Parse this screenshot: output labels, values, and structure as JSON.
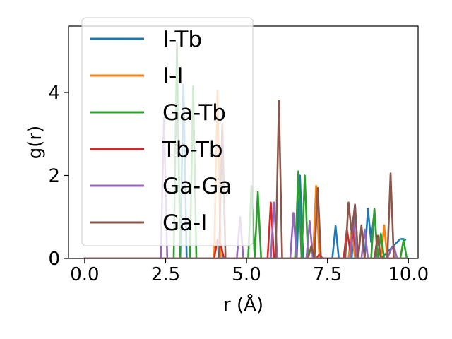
{
  "chart_data": {
    "type": "line",
    "title": "",
    "xlabel": "r (Å)",
    "ylabel": "g(r)",
    "xlim": [
      -0.5,
      10.3
    ],
    "ylim": [
      0,
      5.6
    ],
    "xticks": [
      0.0,
      2.5,
      5.0,
      7.5,
      10.0
    ],
    "xtick_labels": [
      "0.0",
      "2.5",
      "5.0",
      "7.5",
      "10.0"
    ],
    "yticks": [
      0,
      2,
      4
    ],
    "ytick_labels": [
      "0",
      "2",
      "4"
    ],
    "grid": false,
    "legend_position": "upper-left",
    "series": [
      {
        "name": "I-Tb",
        "color": "#1f77b4",
        "x": [
          0,
          2.95,
          3.05,
          3.15,
          3.25,
          6.55,
          6.65,
          6.75,
          6.85,
          7.65,
          7.75,
          7.85,
          8.25,
          8.35,
          8.45,
          8.65,
          8.75,
          8.85,
          8.95,
          9.05,
          9.15,
          9.75,
          9.85,
          9.9
        ],
        "y": [
          0,
          0,
          4.2,
          0,
          0,
          0,
          2.0,
          0,
          0,
          0,
          0.78,
          0,
          0,
          1.3,
          0,
          0,
          1.2,
          0.4,
          1.15,
          0,
          0,
          0.47,
          0.47,
          0.45
        ]
      },
      {
        "name": "I-I",
        "color": "#ff7f0e",
        "x": [
          0,
          4.0,
          4.1,
          4.2,
          7.05,
          7.15,
          7.25,
          8.15,
          8.25,
          8.35,
          9.15,
          9.25,
          9.35,
          9.9
        ],
        "y": [
          0,
          0,
          4.05,
          0,
          0,
          1.75,
          0,
          0,
          0.7,
          0,
          0,
          0.8,
          0,
          0
        ]
      },
      {
        "name": "Ga-Tb",
        "color": "#2ca02c",
        "x": [
          0,
          2.75,
          2.85,
          2.95,
          3.25,
          3.35,
          3.45,
          5.05,
          5.15,
          5.25,
          5.35,
          5.45,
          6.5,
          6.6,
          6.7,
          6.8,
          6.9,
          8.85,
          8.95,
          9.05,
          9.15,
          9.25,
          9.75,
          9.85,
          9.95
        ],
        "y": [
          0,
          0,
          5.2,
          0,
          0,
          4.15,
          0,
          0,
          1.75,
          0,
          1.6,
          0,
          0,
          2.1,
          0,
          2.0,
          0,
          0,
          1.2,
          0,
          0.6,
          0,
          0,
          0.45,
          0
        ]
      },
      {
        "name": "Tb-Tb",
        "color": "#d62728",
        "x": [
          0,
          4.0,
          4.1,
          4.2,
          4.3,
          5.65,
          5.75,
          5.85,
          7.15,
          7.25,
          7.35,
          8.0,
          8.1,
          8.2,
          8.3,
          8.4,
          8.95,
          9.05,
          9.15,
          9.9
        ],
        "y": [
          0,
          0,
          0.45,
          0.35,
          0,
          0,
          1.35,
          0,
          0,
          0.1,
          0,
          0,
          0.7,
          0.2,
          0.65,
          0,
          0,
          0.55,
          0,
          0
        ]
      },
      {
        "name": "Ga-Ga",
        "color": "#9467bd",
        "x": [
          0,
          2.35,
          2.45,
          2.55,
          4.7,
          4.8,
          4.9,
          5.75,
          5.85,
          5.95,
          6.35,
          6.45,
          6.55,
          6.85,
          6.95,
          7.05,
          8.2,
          8.3,
          8.4,
          8.55,
          8.65,
          8.75,
          9.35,
          9.45,
          9.55,
          9.65,
          9.9
        ],
        "y": [
          0,
          0,
          3.4,
          0,
          0,
          1.0,
          0,
          0,
          1.35,
          0,
          0,
          1.1,
          0,
          0,
          0.9,
          0,
          0,
          1.0,
          0,
          0,
          0.7,
          0,
          0,
          0.2,
          0.3,
          0,
          0
        ]
      },
      {
        "name": "Ga-I",
        "color": "#8c564b",
        "x": [
          0,
          4.15,
          4.25,
          4.35,
          5.9,
          6.0,
          6.1,
          6.9,
          7.0,
          7.1,
          7.2,
          7.3,
          7.4,
          8.05,
          8.15,
          8.25,
          8.35,
          8.45,
          8.55,
          8.65,
          8.95,
          9.05,
          9.15,
          9.35,
          9.45,
          9.55,
          9.9
        ],
        "y": [
          0,
          0,
          3.25,
          0,
          0,
          3.8,
          0,
          0,
          0.3,
          0,
          1.7,
          0,
          0,
          0,
          1.35,
          0.6,
          1.3,
          0,
          0.8,
          0,
          0,
          0.5,
          0,
          0,
          2.05,
          0,
          0
        ]
      }
    ]
  }
}
